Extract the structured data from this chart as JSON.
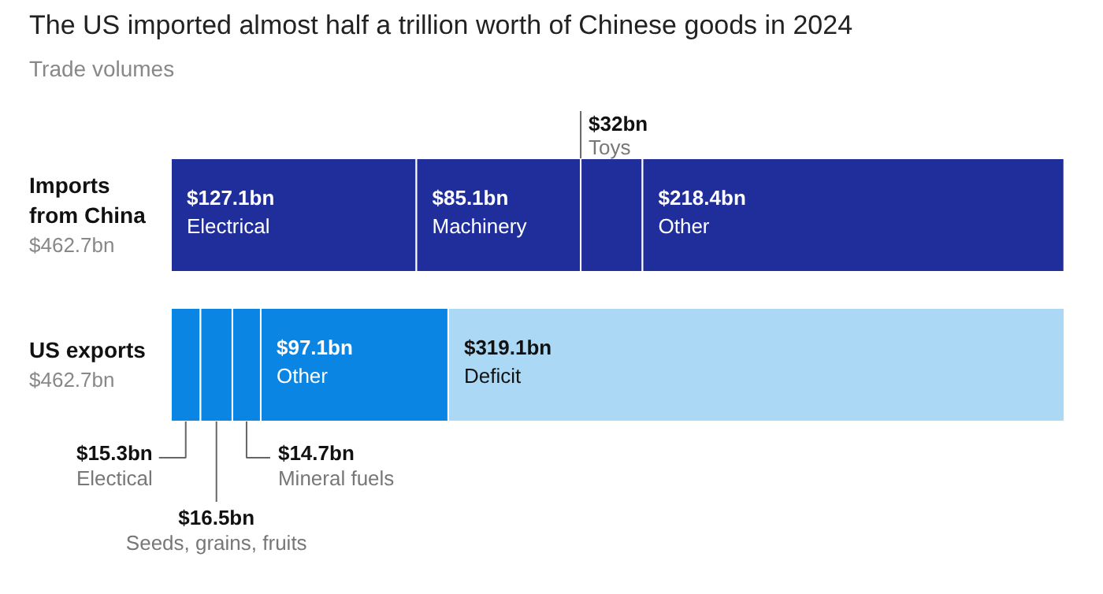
{
  "chart_data": {
    "type": "bar",
    "title": "The US imported almost half a trillion worth of Chinese goods in 2024",
    "subtitle": "Trade volumes",
    "orientation": "horizontal",
    "stacked": true,
    "tick_labels": false,
    "grid": false,
    "xlim": [
      0,
      462.7
    ],
    "categories": [
      "Imports from China",
      "US exports"
    ],
    "totals": [
      "$462.7bn",
      "$462.7bn"
    ],
    "series": [
      {
        "values": [
          127.1,
          15.3
        ],
        "colors": [
          "#1f2e9b",
          "#0b85e3"
        ],
        "value_labels": [
          "$127.1bn",
          "$15.3bn"
        ]
      },
      {
        "values": [
          85.1,
          16.5
        ],
        "colors": [
          "#1f2e9b",
          "#0b85e3"
        ],
        "value_labels": [
          "$85.1bn",
          "$16.5bn"
        ]
      },
      {
        "values": [
          32,
          14.7
        ],
        "colors": [
          "#1f2e9b",
          "#0b85e3"
        ],
        "value_labels": [
          "$32bn",
          "$14.7bn"
        ]
      },
      {
        "values": [
          218.4,
          97.1
        ],
        "colors": [
          "#1f2e9b",
          "#0b85e3"
        ],
        "value_labels": [
          "$218.4bn",
          "$97.1bn"
        ]
      },
      {
        "values": [
          null,
          319.1
        ],
        "colors": [
          null,
          "#aad8f5"
        ],
        "value_labels": [
          null,
          "$319.1bn"
        ]
      }
    ],
    "annotations": [
      "Electrical",
      "Machinery",
      "Toys",
      "Other",
      "Electical",
      "Seeds, grains, fruits",
      "Mineral fuels",
      "Other",
      "Deficit"
    ]
  }
}
